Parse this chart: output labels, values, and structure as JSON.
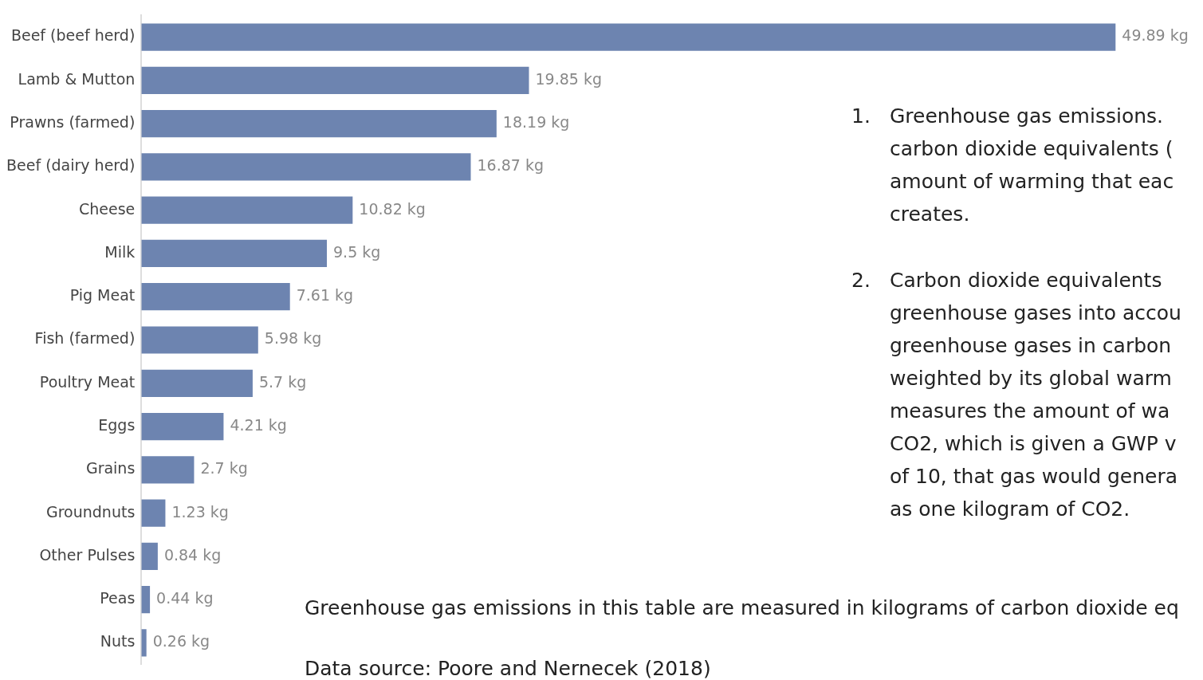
{
  "chart_data": {
    "type": "bar",
    "orientation": "horizontal",
    "categories": [
      "Beef (beef herd)",
      "Lamb & Mutton",
      "Prawns (farmed)",
      "Beef (dairy herd)",
      "Cheese",
      "Milk",
      "Pig Meat",
      "Fish (farmed)",
      "Poultry Meat",
      "Eggs",
      "Grains",
      "Groundnuts",
      "Other Pulses",
      "Peas",
      "Nuts"
    ],
    "values": [
      49.89,
      19.85,
      18.19,
      16.87,
      10.82,
      9.5,
      7.61,
      5.98,
      5.7,
      4.21,
      2.7,
      1.23,
      0.84,
      0.44,
      0.26
    ],
    "value_labels": [
      "49.89 kg",
      "19.85 kg",
      "18.19 kg",
      "16.87 kg",
      "10.82 kg",
      "9.5 kg",
      "7.61 kg",
      "5.98 kg",
      "5.7 kg",
      "4.21 kg",
      "2.7 kg",
      "1.23 kg",
      "0.84 kg",
      "0.44 kg",
      "0.26 kg"
    ],
    "color": "#6d84b0",
    "xlim": [
      0,
      50
    ],
    "tick_labels": "y",
    "annotations": [
      "1.\tGreenhouse gas emissions.\ncarbon dioxide equivalents (\namount of warming that eac\ncreates.",
      "2.\tCarbon dioxide equivalents\ngreenhouse gases into accou\ngreenhouse gases in carbon\nweighted by its global warm\nmeasures the amount of wa\nCO2, which is given a GWP v\nof 10, that gas would genera\nas one kilogram of CO2.",
      "Greenhouse gas emissions in this table are measured in kilograms of carbon dioxide eq",
      "Data source: Poore and Nernecek (2018)"
    ]
  }
}
